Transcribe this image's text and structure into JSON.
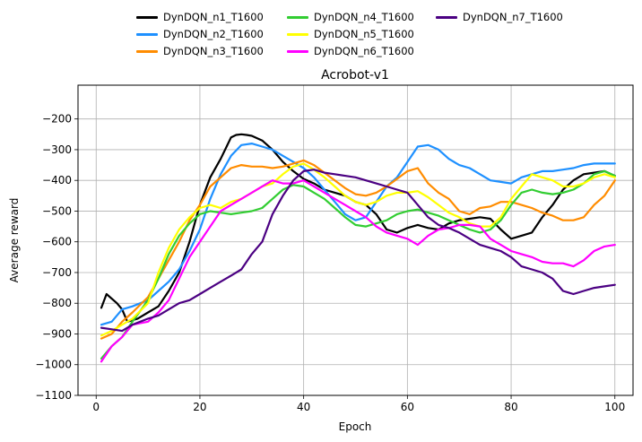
{
  "chart_data": {
    "type": "line",
    "title": "Acrobot-v1",
    "xlabel": "Epoch",
    "ylabel": "Average reward",
    "xlim": [
      -3.5,
      103.5
    ],
    "ylim": [
      -1100,
      -90
    ],
    "xticks": [
      0,
      20,
      40,
      60,
      80,
      100
    ],
    "yticks": [
      -1100,
      -1000,
      -900,
      -800,
      -700,
      -600,
      -500,
      -400,
      -300,
      -200
    ],
    "ytick_labels": [
      "−1100",
      "−1000",
      "−900",
      "−800",
      "−700",
      "−600",
      "−500",
      "−400",
      "−300",
      "−200"
    ],
    "grid": true,
    "legend_position": "top-center",
    "series": [
      {
        "name": "DynDQN_n1_T1600",
        "color": "#000000",
        "x": [
          1,
          2,
          4,
          5,
          6,
          8,
          10,
          12,
          14,
          16,
          18,
          20,
          22,
          24,
          26,
          27,
          28,
          29,
          30,
          32,
          34,
          36,
          38,
          40,
          42,
          44,
          46,
          48,
          50,
          52,
          54,
          56,
          58,
          60,
          62,
          64,
          66,
          68,
          70,
          72,
          74,
          76,
          78,
          80,
          82,
          84,
          86,
          88,
          90,
          92,
          94,
          96,
          98,
          100
        ],
        "y": [
          -815,
          -770,
          -800,
          -820,
          -860,
          -850,
          -830,
          -810,
          -760,
          -700,
          -600,
          -480,
          -390,
          -330,
          -260,
          -252,
          -250,
          -252,
          -255,
          -270,
          -300,
          -340,
          -370,
          -395,
          -410,
          -430,
          -440,
          -450,
          -470,
          -480,
          -510,
          -560,
          -570,
          -555,
          -545,
          -555,
          -560,
          -540,
          -530,
          -525,
          -520,
          -525,
          -560,
          -590,
          -580,
          -570,
          -520,
          -480,
          -430,
          -400,
          -380,
          -375,
          -370,
          -385
        ]
      },
      {
        "name": "DynDQN_n2_T1600",
        "color": "#1e90ff",
        "x": [
          1,
          3,
          5,
          7,
          10,
          12,
          14,
          16,
          18,
          20,
          22,
          24,
          26,
          28,
          30,
          32,
          34,
          36,
          38,
          40,
          42,
          44,
          46,
          48,
          50,
          52,
          54,
          56,
          58,
          60,
          62,
          64,
          66,
          68,
          70,
          72,
          74,
          76,
          78,
          80,
          82,
          84,
          86,
          88,
          90,
          92,
          94,
          96,
          98,
          100
        ],
        "y": [
          -870,
          -860,
          -820,
          -810,
          -790,
          -760,
          -730,
          -690,
          -630,
          -560,
          -460,
          -380,
          -320,
          -285,
          -280,
          -290,
          -300,
          -320,
          -340,
          -360,
          -390,
          -430,
          -470,
          -510,
          -530,
          -520,
          -470,
          -420,
          -390,
          -340,
          -290,
          -285,
          -300,
          -330,
          -350,
          -360,
          -380,
          -400,
          -405,
          -410,
          -390,
          -380,
          -370,
          -370,
          -365,
          -360,
          -350,
          -345,
          -345,
          -345
        ]
      },
      {
        "name": "DynDQN_n3_T1600",
        "color": "#ff8c00",
        "x": [
          1,
          3,
          5,
          7,
          10,
          12,
          14,
          16,
          18,
          20,
          22,
          24,
          26,
          28,
          30,
          32,
          34,
          36,
          38,
          40,
          42,
          44,
          46,
          48,
          50,
          52,
          54,
          56,
          58,
          60,
          62,
          64,
          66,
          68,
          70,
          72,
          74,
          76,
          78,
          80,
          82,
          84,
          86,
          88,
          90,
          92,
          94,
          96,
          98,
          100
        ],
        "y": [
          -915,
          -900,
          -860,
          -830,
          -780,
          -720,
          -660,
          -600,
          -530,
          -480,
          -420,
          -390,
          -360,
          -350,
          -355,
          -355,
          -360,
          -355,
          -345,
          -335,
          -350,
          -375,
          -400,
          -425,
          -445,
          -450,
          -440,
          -420,
          -395,
          -370,
          -360,
          -410,
          -440,
          -460,
          -500,
          -510,
          -490,
          -485,
          -470,
          -470,
          -480,
          -490,
          -505,
          -515,
          -530,
          -530,
          -520,
          -480,
          -450,
          -400
        ]
      },
      {
        "name": "DynDQN_n4_T1600",
        "color": "#32cd32",
        "x": [
          1,
          3,
          5,
          7,
          10,
          12,
          14,
          16,
          18,
          20,
          22,
          24,
          26,
          28,
          30,
          32,
          34,
          36,
          38,
          40,
          42,
          44,
          46,
          48,
          50,
          52,
          54,
          56,
          58,
          60,
          62,
          64,
          66,
          68,
          70,
          72,
          74,
          76,
          78,
          80,
          82,
          84,
          86,
          88,
          90,
          92,
          94,
          96,
          98,
          100
        ],
        "y": [
          -980,
          -940,
          -910,
          -860,
          -790,
          -720,
          -640,
          -580,
          -540,
          -510,
          -500,
          -505,
          -510,
          -505,
          -500,
          -490,
          -460,
          -430,
          -415,
          -420,
          -440,
          -460,
          -490,
          -520,
          -545,
          -550,
          -540,
          -530,
          -510,
          -500,
          -495,
          -505,
          -515,
          -530,
          -545,
          -560,
          -570,
          -560,
          -530,
          -480,
          -440,
          -430,
          -440,
          -445,
          -440,
          -430,
          -410,
          -380,
          -370,
          -385
        ]
      },
      {
        "name": "DynDQN_n5_T1600",
        "color": "#ffff00",
        "x": [
          1,
          3,
          5,
          7,
          10,
          12,
          14,
          16,
          18,
          20,
          22,
          24,
          26,
          28,
          30,
          32,
          34,
          36,
          38,
          40,
          42,
          44,
          46,
          48,
          50,
          52,
          54,
          56,
          58,
          60,
          62,
          64,
          66,
          68,
          70,
          72,
          74,
          76,
          78,
          80,
          82,
          84,
          86,
          88,
          90,
          92,
          94,
          96,
          98,
          100
        ],
        "y": [
          -905,
          -890,
          -870,
          -850,
          -800,
          -700,
          -620,
          -560,
          -520,
          -490,
          -480,
          -490,
          -470,
          -460,
          -440,
          -420,
          -410,
          -380,
          -355,
          -345,
          -365,
          -390,
          -420,
          -450,
          -470,
          -480,
          -470,
          -450,
          -440,
          -440,
          -435,
          -455,
          -480,
          -505,
          -520,
          -540,
          -550,
          -550,
          -520,
          -460,
          -420,
          -380,
          -390,
          -400,
          -420,
          -420,
          -410,
          -390,
          -380,
          -390
        ]
      },
      {
        "name": "DynDQN_n6_T1600",
        "color": "#ff00ff",
        "x": [
          1,
          3,
          5,
          7,
          10,
          12,
          14,
          16,
          18,
          20,
          22,
          24,
          26,
          28,
          30,
          32,
          34,
          36,
          38,
          40,
          42,
          44,
          46,
          48,
          50,
          52,
          54,
          56,
          58,
          60,
          62,
          64,
          66,
          68,
          70,
          72,
          74,
          76,
          78,
          80,
          82,
          84,
          86,
          88,
          90,
          92,
          94,
          96,
          98,
          100
        ],
        "y": [
          -990,
          -940,
          -910,
          -870,
          -860,
          -830,
          -790,
          -720,
          -650,
          -600,
          -550,
          -500,
          -480,
          -460,
          -440,
          -420,
          -400,
          -410,
          -410,
          -400,
          -420,
          -440,
          -460,
          -480,
          -500,
          -520,
          -550,
          -570,
          -580,
          -590,
          -610,
          -580,
          -560,
          -555,
          -545,
          -545,
          -550,
          -590,
          -610,
          -630,
          -640,
          -650,
          -665,
          -670,
          -670,
          -680,
          -660,
          -630,
          -615,
          -610
        ]
      },
      {
        "name": "DynDQN_n7_T1600",
        "color": "#4b0082",
        "x": [
          1,
          3,
          5,
          7,
          10,
          12,
          14,
          16,
          18,
          20,
          22,
          24,
          26,
          28,
          30,
          32,
          34,
          36,
          38,
          40,
          42,
          44,
          46,
          48,
          50,
          52,
          54,
          56,
          58,
          60,
          62,
          64,
          66,
          68,
          70,
          72,
          74,
          76,
          78,
          80,
          82,
          84,
          86,
          88,
          90,
          92,
          94,
          96,
          98,
          100
        ],
        "y": [
          -880,
          -885,
          -890,
          -870,
          -850,
          -840,
          -820,
          -800,
          -790,
          -770,
          -750,
          -730,
          -710,
          -690,
          -640,
          -600,
          -510,
          -450,
          -400,
          -370,
          -365,
          -375,
          -380,
          -385,
          -390,
          -400,
          -410,
          -420,
          -430,
          -440,
          -480,
          -520,
          -545,
          -555,
          -570,
          -590,
          -610,
          -620,
          -630,
          -650,
          -680,
          -690,
          -700,
          -720,
          -760,
          -770,
          -760,
          -750,
          -745,
          -740
        ]
      }
    ]
  }
}
